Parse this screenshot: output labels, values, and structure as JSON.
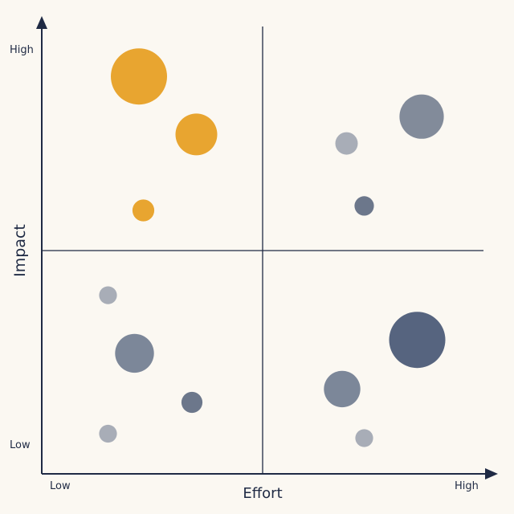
{
  "chart_data": {
    "type": "scatter",
    "title": "",
    "xlabel": "Effort",
    "ylabel": "Impact",
    "x_tick_labels": {
      "low": "Low",
      "high": "High"
    },
    "y_tick_labels": {
      "low": "Low",
      "high": "High"
    },
    "xlim": [
      0,
      10
    ],
    "ylim": [
      0,
      10
    ],
    "quadrant_dividers": {
      "x": 5,
      "y": 5
    },
    "grid": false,
    "legend": "none",
    "colors": {
      "axis": "#1f2a44",
      "quick_win": "#e8a530",
      "slate_dark": "#56647f",
      "slate_mid": "#7c8799",
      "slate_light": "#a8adb7",
      "background": "#fbf8f2"
    },
    "points": [
      {
        "x": 2.2,
        "y": 8.9,
        "size": 10,
        "color": "#e8a530"
      },
      {
        "x": 3.5,
        "y": 7.6,
        "size": 5.5,
        "color": "#e8a530"
      },
      {
        "x": 2.3,
        "y": 5.9,
        "size": 1.5,
        "color": "#e8a530"
      },
      {
        "x": 6.9,
        "y": 7.4,
        "size": 1.6,
        "color": "#a8adb7"
      },
      {
        "x": 8.6,
        "y": 8.0,
        "size": 6.2,
        "color": "#828b9a"
      },
      {
        "x": 7.3,
        "y": 6.0,
        "size": 1.2,
        "color": "#6c778b"
      },
      {
        "x": 1.5,
        "y": 4.0,
        "size": 1.0,
        "color": "#a8adb7"
      },
      {
        "x": 2.1,
        "y": 2.7,
        "size": 4.8,
        "color": "#7c8799"
      },
      {
        "x": 3.4,
        "y": 1.6,
        "size": 1.4,
        "color": "#6c778b"
      },
      {
        "x": 1.5,
        "y": 0.9,
        "size": 1.0,
        "color": "#a8adb7"
      },
      {
        "x": 8.5,
        "y": 3.0,
        "size": 10,
        "color": "#56647f"
      },
      {
        "x": 6.8,
        "y": 1.9,
        "size": 4.2,
        "color": "#7c8799"
      },
      {
        "x": 7.3,
        "y": 0.8,
        "size": 1.0,
        "color": "#a8adb7"
      }
    ]
  }
}
